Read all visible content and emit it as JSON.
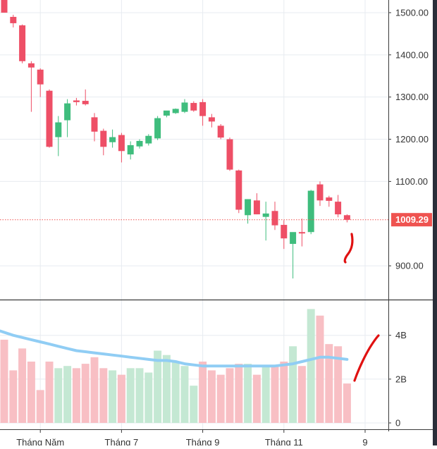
{
  "chart_data": {
    "type": "candlestick",
    "x_axis": {
      "tick_labels": [
        {
          "label": "Tháng Năm",
          "index": 4
        },
        {
          "label": "Tháng 7",
          "index": 13
        },
        {
          "label": "Tháng 9",
          "index": 22
        },
        {
          "label": "Tháng 11",
          "index": 31
        },
        {
          "label": "9",
          "index": 40
        }
      ]
    },
    "price_axis": {
      "range": [
        820,
        1530
      ],
      "ticks": [
        {
          "value": 1500,
          "label": "1500.00"
        },
        {
          "value": 1400,
          "label": "1400.00"
        },
        {
          "value": 1300,
          "label": "1300.00"
        },
        {
          "value": 1200,
          "label": "1200.00"
        },
        {
          "value": 1100,
          "label": "1100.00"
        },
        {
          "value": 900,
          "label": "900.00"
        }
      ]
    },
    "volume_axis": {
      "range": [
        0,
        5.6
      ],
      "ticks": [
        {
          "value": 4,
          "label": "4B"
        },
        {
          "value": 2,
          "label": "2B"
        },
        {
          "value": 0,
          "label": "0"
        }
      ]
    },
    "last_price": {
      "value": 1009.29,
      "label": "1009.29"
    },
    "colors": {
      "up": "#3fbd7d",
      "down": "#ee4f66",
      "volume_up": "#c4e8d3",
      "volume_down": "#f8bfc4",
      "volume_ma": "#90cdf4",
      "price_line": "#ef5350",
      "annotation": "#e01111",
      "grid": "#e7ebf0",
      "axis": "#3a3a3a"
    },
    "candles": [
      {
        "o": 1545,
        "h": 1548,
        "l": 1500,
        "c": 1500
      },
      {
        "o": 1490,
        "h": 1495,
        "l": 1465,
        "c": 1475
      },
      {
        "o": 1470,
        "h": 1472,
        "l": 1380,
        "c": 1385
      },
      {
        "o": 1380,
        "h": 1385,
        "l": 1265,
        "c": 1370
      },
      {
        "o": 1365,
        "h": 1368,
        "l": 1300,
        "c": 1330
      },
      {
        "o": 1315,
        "h": 1318,
        "l": 1180,
        "c": 1182
      },
      {
        "o": 1205,
        "h": 1255,
        "l": 1160,
        "c": 1240
      },
      {
        "o": 1245,
        "h": 1295,
        "l": 1205,
        "c": 1285
      },
      {
        "o": 1292,
        "h": 1298,
        "l": 1280,
        "c": 1288
      },
      {
        "o": 1291,
        "h": 1318,
        "l": 1280,
        "c": 1283
      },
      {
        "o": 1252,
        "h": 1262,
        "l": 1195,
        "c": 1218
      },
      {
        "o": 1220,
        "h": 1225,
        "l": 1162,
        "c": 1182
      },
      {
        "o": 1193,
        "h": 1223,
        "l": 1180,
        "c": 1205
      },
      {
        "o": 1210,
        "h": 1215,
        "l": 1145,
        "c": 1172
      },
      {
        "o": 1164,
        "h": 1195,
        "l": 1152,
        "c": 1186
      },
      {
        "o": 1183,
        "h": 1200,
        "l": 1178,
        "c": 1196
      },
      {
        "o": 1190,
        "h": 1212,
        "l": 1185,
        "c": 1208
      },
      {
        "o": 1202,
        "h": 1255,
        "l": 1198,
        "c": 1250
      },
      {
        "o": 1256,
        "h": 1266,
        "l": 1252,
        "c": 1268
      },
      {
        "o": 1262,
        "h": 1273,
        "l": 1260,
        "c": 1272
      },
      {
        "o": 1265,
        "h": 1295,
        "l": 1262,
        "c": 1287
      },
      {
        "o": 1286,
        "h": 1290,
        "l": 1265,
        "c": 1268
      },
      {
        "o": 1288,
        "h": 1295,
        "l": 1232,
        "c": 1255
      },
      {
        "o": 1252,
        "h": 1260,
        "l": 1228,
        "c": 1242
      },
      {
        "o": 1232,
        "h": 1236,
        "l": 1200,
        "c": 1204
      },
      {
        "o": 1200,
        "h": 1204,
        "l": 1125,
        "c": 1128
      },
      {
        "o": 1126,
        "h": 1128,
        "l": 1025,
        "c": 1033
      },
      {
        "o": 1020,
        "h": 1058,
        "l": 1000,
        "c": 1058
      },
      {
        "o": 1055,
        "h": 1072,
        "l": 1022,
        "c": 1022
      },
      {
        "o": 1016,
        "h": 1052,
        "l": 960,
        "c": 1024
      },
      {
        "o": 1030,
        "h": 1052,
        "l": 985,
        "c": 996
      },
      {
        "o": 997,
        "h": 1008,
        "l": 940,
        "c": 965
      },
      {
        "o": 952,
        "h": 975,
        "l": 870,
        "c": 980
      },
      {
        "o": 980,
        "h": 1012,
        "l": 946,
        "c": 977
      },
      {
        "o": 980,
        "h": 1080,
        "l": 975,
        "c": 1078
      },
      {
        "o": 1093,
        "h": 1100,
        "l": 1042,
        "c": 1055
      },
      {
        "o": 1062,
        "h": 1066,
        "l": 1040,
        "c": 1054
      },
      {
        "o": 1052,
        "h": 1068,
        "l": 1015,
        "c": 1022
      },
      {
        "o": 1020,
        "h": 1022,
        "l": 1003,
        "c": 1009
      }
    ],
    "volume": [
      {
        "v": 3.8,
        "up": false
      },
      {
        "v": 2.4,
        "up": false
      },
      {
        "v": 3.4,
        "up": false
      },
      {
        "v": 2.8,
        "up": false
      },
      {
        "v": 1.5,
        "up": false
      },
      {
        "v": 2.8,
        "up": false
      },
      {
        "v": 2.5,
        "up": true
      },
      {
        "v": 2.6,
        "up": true
      },
      {
        "v": 2.5,
        "up": false
      },
      {
        "v": 2.7,
        "up": false
      },
      {
        "v": 3.0,
        "up": false
      },
      {
        "v": 2.5,
        "up": false
      },
      {
        "v": 2.4,
        "up": true
      },
      {
        "v": 2.2,
        "up": false
      },
      {
        "v": 2.5,
        "up": true
      },
      {
        "v": 2.5,
        "up": true
      },
      {
        "v": 2.3,
        "up": true
      },
      {
        "v": 3.3,
        "up": true
      },
      {
        "v": 3.1,
        "up": true
      },
      {
        "v": 2.8,
        "up": true
      },
      {
        "v": 2.6,
        "up": true
      },
      {
        "v": 1.7,
        "up": true
      },
      {
        "v": 2.8,
        "up": false
      },
      {
        "v": 2.4,
        "up": false
      },
      {
        "v": 2.2,
        "up": false
      },
      {
        "v": 2.5,
        "up": false
      },
      {
        "v": 2.7,
        "up": false
      },
      {
        "v": 2.7,
        "up": true
      },
      {
        "v": 2.2,
        "up": false
      },
      {
        "v": 2.6,
        "up": true
      },
      {
        "v": 2.6,
        "up": false
      },
      {
        "v": 2.8,
        "up": false
      },
      {
        "v": 3.5,
        "up": true
      },
      {
        "v": 2.6,
        "up": false
      },
      {
        "v": 5.2,
        "up": true
      },
      {
        "v": 4.9,
        "up": false
      },
      {
        "v": 3.6,
        "up": false
      },
      {
        "v": 3.5,
        "up": false
      },
      {
        "v": 1.8,
        "up": false
      }
    ],
    "volume_ma": [
      4.2,
      4.0,
      3.9,
      3.8,
      3.7,
      3.6,
      3.5,
      3.4,
      3.3,
      3.25,
      3.2,
      3.15,
      3.1,
      3.05,
      3.0,
      2.95,
      2.9,
      2.85,
      2.85,
      2.8,
      2.7,
      2.65,
      2.6,
      2.6,
      2.6,
      2.6,
      2.6,
      2.6,
      2.6,
      2.6,
      2.6,
      2.65,
      2.7,
      2.8,
      2.9,
      3.0,
      3.0,
      2.95,
      2.9
    ]
  }
}
